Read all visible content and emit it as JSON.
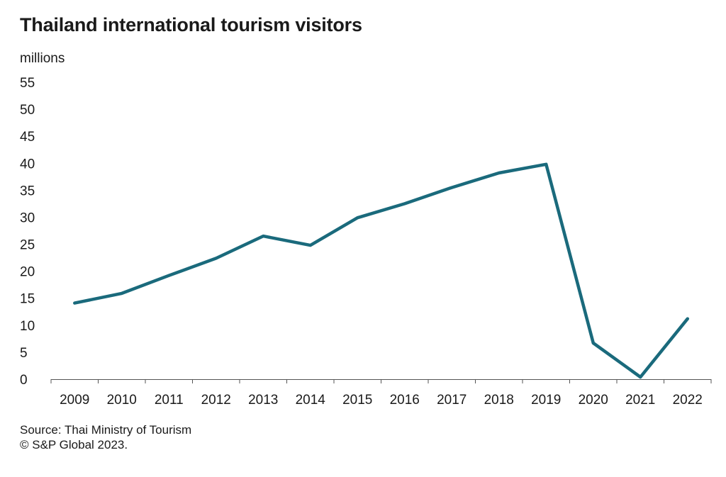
{
  "chart_data": {
    "type": "line",
    "title": "Thailand international tourism visitors",
    "ylabel": "millions",
    "xlabel": "",
    "x": [
      "2009",
      "2010",
      "2011",
      "2012",
      "2013",
      "2014",
      "2015",
      "2016",
      "2017",
      "2018",
      "2019",
      "2020",
      "2021",
      "2022"
    ],
    "series": [
      {
        "values": [
          14.1,
          15.9,
          19.2,
          22.4,
          26.5,
          24.8,
          29.9,
          32.5,
          35.5,
          38.2,
          39.8,
          6.7,
          0.4,
          11.2
        ]
      }
    ],
    "ylim": [
      0,
      55
    ],
    "yticks": [
      0,
      5,
      10,
      15,
      20,
      25,
      30,
      35,
      40,
      45,
      50,
      55
    ],
    "grid": false,
    "line_color": "#1a6a7c"
  },
  "footer": {
    "source": "Source: Thai Ministry of Tourism",
    "copyright": "© S&P Global 2023."
  }
}
